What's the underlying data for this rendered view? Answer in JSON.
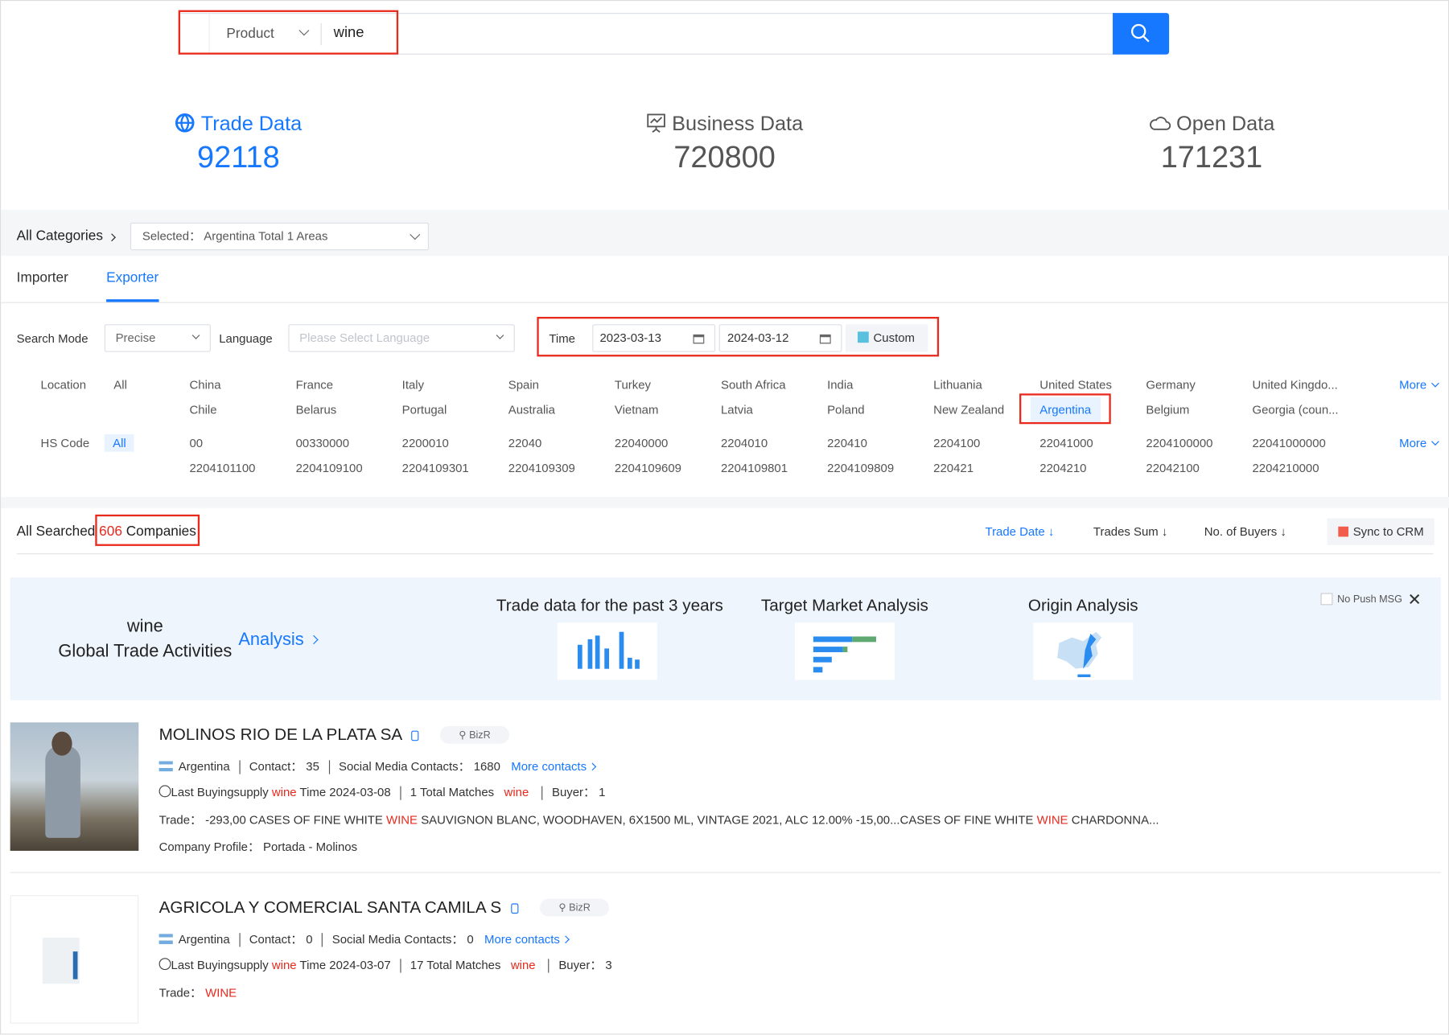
{
  "search": {
    "type": "Product",
    "query": "wine"
  },
  "stats": [
    {
      "label": "Trade Data",
      "value": "92118",
      "icon": "globe-icon"
    },
    {
      "label": "Business Data",
      "value": "720800",
      "icon": "presentation-chart-icon"
    },
    {
      "label": "Open Data",
      "value": "171231",
      "icon": "cloud-icon"
    }
  ],
  "categories": {
    "label": "All Categories",
    "selected": "Selected： Argentina Total 1 Areas"
  },
  "tabs": [
    {
      "label": "Importer"
    },
    {
      "label": "Exporter",
      "active": true
    }
  ],
  "filters": {
    "search_mode_label": "Search Mode",
    "search_mode": "Precise",
    "language_label": "Language",
    "language_placeholder": "Please Select Language",
    "time_label": "Time",
    "start_date": "2023-03-13",
    "end_date": "2024-03-12",
    "custom_label": "Custom"
  },
  "location": {
    "label": "Location",
    "all": "All",
    "more": "More",
    "items": [
      "China",
      "France",
      "Italy",
      "Spain",
      "Turkey",
      "South Africa",
      "India",
      "Lithuania",
      "United States",
      "Germany",
      "United Kingdo...",
      "Chile",
      "Belarus",
      "Portugal",
      "Australia",
      "Vietnam",
      "Latvia",
      "Poland",
      "New Zealand",
      "Argentina",
      "Belgium",
      "Georgia (coun..."
    ],
    "selected": "Argentina"
  },
  "hs_code": {
    "label": "HS Code",
    "all": "All",
    "more": "More",
    "items": [
      "00",
      "00330000",
      "2200010",
      "22040",
      "22040000",
      "2204010",
      "220410",
      "2204100",
      "22041000",
      "2204100000",
      "22041000000",
      "2204101100",
      "2204109100",
      "2204109301",
      "2204109309",
      "2204109609",
      "2204109801",
      "2204109809",
      "220421",
      "2204210",
      "22042100",
      "2204210000"
    ]
  },
  "results": {
    "prefix": "All Searched",
    "count": "606",
    "suffix": "Companies",
    "sort": [
      {
        "label": "Trade Date",
        "active": true
      },
      {
        "label": "Trades Sum"
      },
      {
        "label": "No. of Buyers"
      }
    ],
    "sync_label": "Sync to CRM"
  },
  "banner": {
    "keyword": "wine",
    "subtitle": "Global Trade Activities",
    "analysis": "Analysis",
    "cards": [
      {
        "title": "Trade data for the past 3 years"
      },
      {
        "title": "Target Market Analysis"
      },
      {
        "title": "Origin Analysis"
      }
    ],
    "no_push": "No Push MSG"
  },
  "companies": [
    {
      "name": "MOLINOS RIO DE LA PLATA SA",
      "badge": "BizR",
      "country": "Argentina",
      "contact": "Contact： 35",
      "social": "Social Media Contacts： 1680",
      "more": "More contacts",
      "last_a": "Last Buyingsupply",
      "kw": "wine",
      "last_b": "Time 2024-03-08",
      "matches": "1 Total Matches",
      "buyer": "Buyer： 1",
      "trade_label": "Trade：",
      "trade_1": "-293,00 CASES OF FINE WHITE",
      "trade_kw": "WINE",
      "trade_2": "SAUVIGNON BLANC, WOODHAVEN, 6X1500 ML, VINTAGE 2021, ALC 12.00% -15,00...CASES OF FINE WHITE",
      "trade_3": "CHARDONNA...",
      "profile": "Company Profile： Portada - Molinos"
    },
    {
      "name": "AGRICOLA Y COMERCIAL SANTA CAMILA S",
      "badge": "BizR",
      "country": "Argentina",
      "contact": "Contact： 0",
      "social": "Social Media Contacts： 0",
      "more": "More contacts",
      "last_a": "Last Buyingsupply",
      "kw": "wine",
      "last_b": "Time 2024-03-07",
      "matches": "17 Total Matches",
      "buyer": "Buyer： 3",
      "trade_label": "Trade：",
      "trade_kw": "WINE"
    }
  ],
  "colors": {
    "accent": "#1677ff",
    "highlight": "#e8291c",
    "banner_bg": "#eef5fd"
  }
}
